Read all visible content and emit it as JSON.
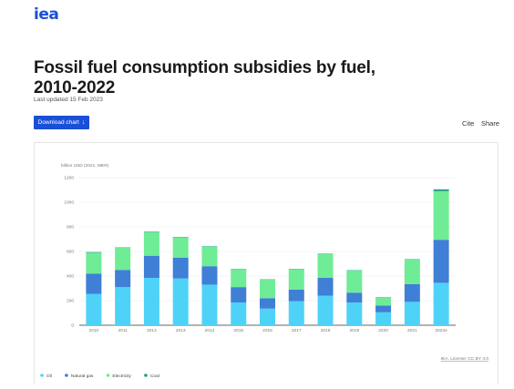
{
  "logo": "iea",
  "title": "Fossil fuel consumption subsidies by fuel, 2010-2022",
  "last_updated": "Last updated 15 Feb 2023",
  "download_label": "Download chart",
  "download_arrow": "↓",
  "cite_label": "Cite",
  "share_label": "Share",
  "license_text": "IEA. License: CC BY 4.0",
  "colors": {
    "Oil": "#4fd2f7",
    "Natural gas": "#3f7fd6",
    "Electricity": "#6fec96",
    "Coal": "#1fa08a",
    "brand": "#1a4fd8"
  },
  "chart_data": {
    "type": "bar",
    "stacked": true,
    "ylabel": "billion USD (2021, MER)",
    "ylim": [
      0,
      1200
    ],
    "yticks": [
      0,
      200,
      400,
      600,
      800,
      1000,
      1200
    ],
    "grid": true,
    "legend_position": "bottom-left",
    "categories": [
      "2010",
      "2011",
      "2012",
      "2013",
      "2014",
      "2015",
      "2016",
      "2017",
      "2018",
      "2019",
      "2020",
      "2021",
      "2022e"
    ],
    "series": [
      {
        "name": "Oil",
        "values": [
          255,
          310,
          385,
          380,
          330,
          185,
          135,
          195,
          240,
          185,
          105,
          190,
          345
        ]
      },
      {
        "name": "Natural gas",
        "values": [
          165,
          140,
          180,
          170,
          150,
          125,
          85,
          95,
          145,
          80,
          55,
          145,
          350
        ]
      },
      {
        "name": "Electricity",
        "values": [
          170,
          180,
          190,
          165,
          160,
          145,
          150,
          165,
          195,
          180,
          65,
          200,
          395
        ]
      },
      {
        "name": "Coal",
        "values": [
          5,
          3,
          5,
          3,
          3,
          3,
          3,
          3,
          3,
          3,
          3,
          3,
          15
        ]
      }
    ]
  }
}
